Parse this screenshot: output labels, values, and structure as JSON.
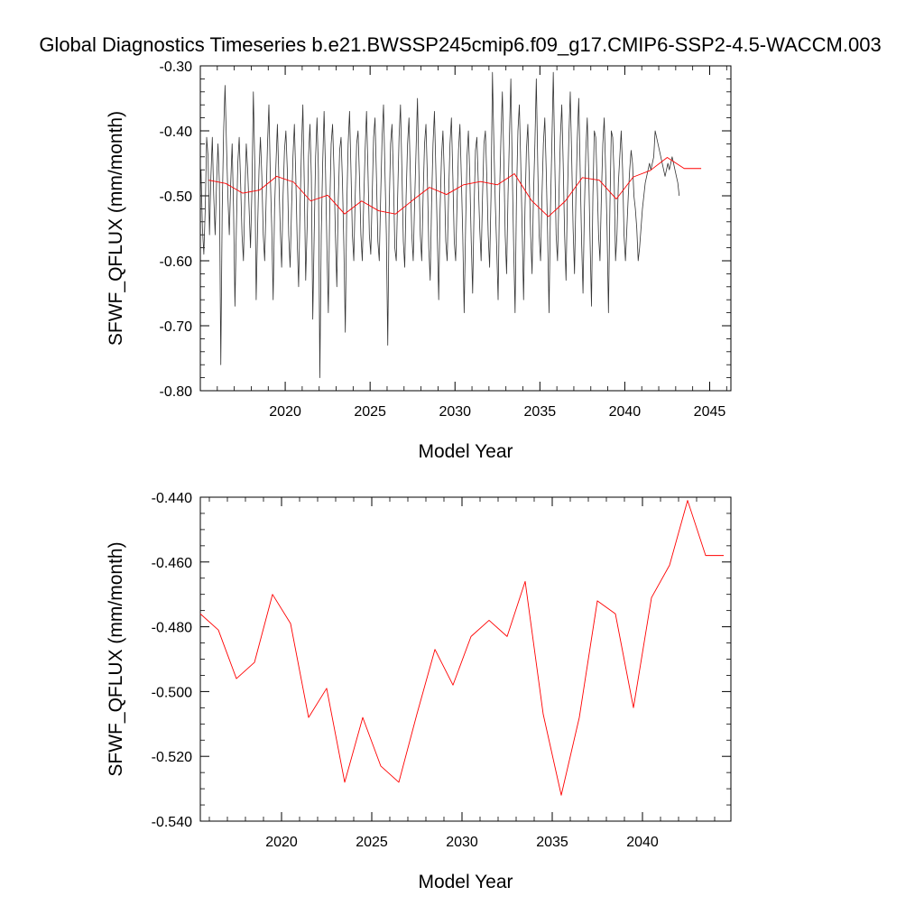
{
  "title": "Global Diagnostics Timeseries b.e21.BWSSP245cmip6.f09_g17.CMIP6-SSP2-4.5-WACCM.003",
  "colors": {
    "monthly": "#333333",
    "annual": "#ff0000",
    "axis": "#000000"
  },
  "chart_data": [
    {
      "type": "line",
      "name": "top-panel",
      "xlabel": "Model Year",
      "ylabel": "SFWF_QFLUX (mm/month)",
      "xlim": [
        2015,
        2046.25
      ],
      "ylim": [
        -0.8,
        -0.3
      ],
      "xticks": [
        2020,
        2025,
        2030,
        2035,
        2040,
        2045
      ],
      "xtick_labels": [
        "2020",
        "2025",
        "2030",
        "2035",
        "2040",
        "2045"
      ],
      "yticks": [
        -0.8,
        -0.7,
        -0.6,
        -0.5,
        -0.4,
        -0.3
      ],
      "ytick_labels": [
        "-0.80",
        "-0.70",
        "-0.60",
        "-0.50",
        "-0.40",
        "-0.30"
      ],
      "series": [
        {
          "name": "monthly",
          "color": "#333333",
          "x_start": 2015.04,
          "x_step": 0.08333,
          "values": [
            -0.46,
            -0.55,
            -0.59,
            -0.52,
            -0.41,
            -0.44,
            -0.56,
            -0.47,
            -0.41,
            -0.5,
            -0.56,
            -0.48,
            -0.42,
            -0.48,
            -0.76,
            -0.52,
            -0.4,
            -0.33,
            -0.42,
            -0.5,
            -0.56,
            -0.48,
            -0.42,
            -0.52,
            -0.67,
            -0.55,
            -0.45,
            -0.41,
            -0.48,
            -0.56,
            -0.6,
            -0.5,
            -0.42,
            -0.46,
            -0.52,
            -0.58,
            -0.49,
            -0.34,
            -0.45,
            -0.66,
            -0.55,
            -0.46,
            -0.41,
            -0.47,
            -0.56,
            -0.6,
            -0.51,
            -0.42,
            -0.36,
            -0.47,
            -0.55,
            -0.66,
            -0.52,
            -0.45,
            -0.39,
            -0.47,
            -0.55,
            -0.61,
            -0.5,
            -0.43,
            -0.4,
            -0.46,
            -0.56,
            -0.61,
            -0.52,
            -0.44,
            -0.39,
            -0.47,
            -0.57,
            -0.64,
            -0.52,
            -0.43,
            -0.36,
            -0.48,
            -0.63,
            -0.55,
            -0.44,
            -0.39,
            -0.47,
            -0.69,
            -0.56,
            -0.44,
            -0.38,
            -0.46,
            -0.78,
            -0.56,
            -0.45,
            -0.37,
            -0.46,
            -0.58,
            -0.68,
            -0.52,
            -0.42,
            -0.39,
            -0.46,
            -0.56,
            -0.64,
            -0.51,
            -0.43,
            -0.41,
            -0.48,
            -0.58,
            -0.71,
            -0.52,
            -0.42,
            -0.37,
            -0.46,
            -0.56,
            -0.6,
            -0.5,
            -0.42,
            -0.4,
            -0.47,
            -0.56,
            -0.6,
            -0.51,
            -0.43,
            -0.37,
            -0.46,
            -0.56,
            -0.59,
            -0.5,
            -0.41,
            -0.38,
            -0.47,
            -0.57,
            -0.6,
            -0.5,
            -0.41,
            -0.36,
            -0.46,
            -0.56,
            -0.73,
            -0.52,
            -0.42,
            -0.39,
            -0.47,
            -0.58,
            -0.6,
            -0.5,
            -0.41,
            -0.36,
            -0.46,
            -0.57,
            -0.61,
            -0.5,
            -0.42,
            -0.38,
            -0.47,
            -0.56,
            -0.6,
            -0.51,
            -0.43,
            -0.35,
            -0.46,
            -0.56,
            -0.6,
            -0.5,
            -0.42,
            -0.39,
            -0.47,
            -0.58,
            -0.63,
            -0.51,
            -0.42,
            -0.37,
            -0.46,
            -0.56,
            -0.66,
            -0.52,
            -0.44,
            -0.4,
            -0.47,
            -0.57,
            -0.6,
            -0.5,
            -0.42,
            -0.38,
            -0.47,
            -0.57,
            -0.6,
            -0.51,
            -0.43,
            -0.39,
            -0.47,
            -0.56,
            -0.68,
            -0.55,
            -0.44,
            -0.4,
            -0.47,
            -0.57,
            -0.65,
            -0.52,
            -0.43,
            -0.41,
            -0.48,
            -0.55,
            -0.6,
            -0.5,
            -0.42,
            -0.4,
            -0.47,
            -0.56,
            -0.61,
            -0.5,
            -0.31,
            -0.42,
            -0.51,
            -0.58,
            -0.66,
            -0.5,
            -0.41,
            -0.34,
            -0.44,
            -0.56,
            -0.62,
            -0.5,
            -0.41,
            -0.32,
            -0.46,
            -0.58,
            -0.68,
            -0.5,
            -0.4,
            -0.36,
            -0.45,
            -0.55,
            -0.66,
            -0.52,
            -0.43,
            -0.39,
            -0.47,
            -0.56,
            -0.62,
            -0.5,
            -0.42,
            -0.32,
            -0.45,
            -0.56,
            -0.6,
            -0.5,
            -0.42,
            -0.38,
            -0.46,
            -0.56,
            -0.68,
            -0.52,
            -0.42,
            -0.31,
            -0.44,
            -0.56,
            -0.6,
            -0.5,
            -0.41,
            -0.36,
            -0.45,
            -0.56,
            -0.63,
            -0.5,
            -0.41,
            -0.34,
            -0.44,
            -0.55,
            -0.62,
            -0.5,
            -0.41,
            -0.35,
            -0.46,
            -0.57,
            -0.65,
            -0.52,
            -0.43,
            -0.38,
            -0.46,
            -0.57,
            -0.67,
            -0.5,
            -0.4,
            -0.41,
            -0.48,
            -0.56,
            -0.6,
            -0.5,
            -0.42,
            -0.38,
            -0.46,
            -0.55,
            -0.68,
            -0.52,
            -0.4,
            -0.41,
            -0.47,
            -0.6,
            -0.56,
            -0.48,
            -0.44,
            -0.4,
            -0.46,
            -0.56,
            -0.6,
            -0.55,
            -0.5,
            -0.46,
            -0.43,
            -0.45,
            -0.5,
            -0.52,
            -0.55,
            -0.6,
            -0.58,
            -0.55,
            -0.52,
            -0.5,
            -0.48,
            -0.47,
            -0.46,
            -0.45,
            -0.46,
            -0.45,
            -0.44,
            -0.4,
            -0.41,
            -0.42,
            -0.43,
            -0.44,
            -0.45,
            -0.46,
            -0.47,
            -0.46,
            -0.45,
            -0.46,
            -0.45,
            -0.44,
            -0.45,
            -0.46,
            -0.47,
            -0.48,
            -0.5
          ]
        },
        {
          "name": "annual-mean",
          "color": "#ff0000",
          "x": [
            2015.5,
            2016.5,
            2017.5,
            2018.5,
            2019.5,
            2020.5,
            2021.5,
            2022.5,
            2023.5,
            2024.5,
            2025.5,
            2026.5,
            2027.5,
            2028.5,
            2029.5,
            2030.5,
            2031.5,
            2032.5,
            2033.5,
            2034.5,
            2035.5,
            2036.5,
            2037.5,
            2038.5,
            2039.5,
            2040.5,
            2041.5,
            2042.5,
            2043.5,
            2044.5
          ],
          "values": [
            -0.476,
            -0.481,
            -0.496,
            -0.491,
            -0.47,
            -0.479,
            -0.508,
            -0.499,
            -0.528,
            -0.508,
            -0.523,
            -0.528,
            -0.507,
            -0.487,
            -0.498,
            -0.483,
            -0.478,
            -0.483,
            -0.466,
            -0.507,
            -0.532,
            -0.508,
            -0.472,
            -0.476,
            -0.505,
            -0.471,
            -0.461,
            -0.441,
            -0.458,
            -0.458
          ]
        }
      ]
    },
    {
      "type": "line",
      "name": "bottom-panel",
      "xlabel": "Model Year",
      "ylabel": "SFWF_QFLUX (mm/month)",
      "xlim": [
        2015.5,
        2044.9
      ],
      "ylim": [
        -0.54,
        -0.44
      ],
      "xticks": [
        2020,
        2025,
        2030,
        2035,
        2040
      ],
      "xtick_labels": [
        "2020",
        "2025",
        "2030",
        "2035",
        "2040"
      ],
      "yticks": [
        -0.54,
        -0.52,
        -0.5,
        -0.48,
        -0.46,
        -0.44
      ],
      "ytick_labels": [
        "-0.540",
        "-0.520",
        "-0.500",
        "-0.480",
        "-0.460",
        "-0.440"
      ],
      "series": [
        {
          "name": "annual-mean",
          "color": "#ff0000",
          "x": [
            2015.5,
            2016.5,
            2017.5,
            2018.5,
            2019.5,
            2020.5,
            2021.5,
            2022.5,
            2023.5,
            2024.5,
            2025.5,
            2026.5,
            2027.5,
            2028.5,
            2029.5,
            2030.5,
            2031.5,
            2032.5,
            2033.5,
            2034.5,
            2035.5,
            2036.5,
            2037.5,
            2038.5,
            2039.5,
            2040.5,
            2041.5,
            2042.5,
            2043.5,
            2044.5
          ],
          "values": [
            -0.476,
            -0.481,
            -0.496,
            -0.491,
            -0.47,
            -0.479,
            -0.508,
            -0.499,
            -0.528,
            -0.508,
            -0.523,
            -0.528,
            -0.507,
            -0.487,
            -0.498,
            -0.483,
            -0.478,
            -0.483,
            -0.466,
            -0.507,
            -0.532,
            -0.508,
            -0.472,
            -0.476,
            -0.505,
            -0.471,
            -0.461,
            -0.441,
            -0.458,
            -0.458
          ]
        }
      ]
    }
  ]
}
